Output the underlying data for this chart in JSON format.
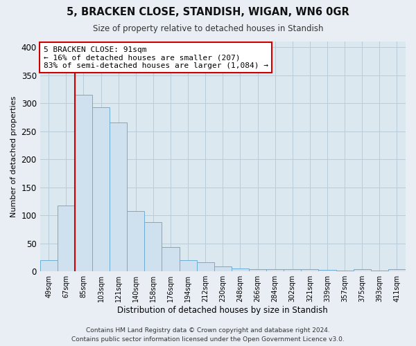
{
  "title": "5, BRACKEN CLOSE, STANDISH, WIGAN, WN6 0GR",
  "subtitle": "Size of property relative to detached houses in Standish",
  "xlabel": "Distribution of detached houses by size in Standish",
  "ylabel": "Number of detached properties",
  "bar_labels": [
    "49sqm",
    "67sqm",
    "85sqm",
    "103sqm",
    "121sqm",
    "140sqm",
    "158sqm",
    "176sqm",
    "194sqm",
    "212sqm",
    "230sqm",
    "248sqm",
    "266sqm",
    "284sqm",
    "302sqm",
    "321sqm",
    "339sqm",
    "357sqm",
    "375sqm",
    "393sqm",
    "411sqm"
  ],
  "bar_values": [
    20,
    118,
    315,
    293,
    265,
    108,
    88,
    43,
    20,
    16,
    9,
    5,
    4,
    4,
    4,
    4,
    3,
    1,
    4,
    1,
    4
  ],
  "bar_color": "#cfe0ee",
  "bar_edge_color": "#6aaed6",
  "vline_color": "#cc0000",
  "vline_x_idx": 2,
  "ylim": [
    0,
    410
  ],
  "annotation_text": "5 BRACKEN CLOSE: 91sqm\n← 16% of detached houses are smaller (207)\n83% of semi-detached houses are larger (1,084) →",
  "annotation_box_color": "#ffffff",
  "annotation_box_edge": "#cc0000",
  "footer_line1": "Contains HM Land Registry data © Crown copyright and database right 2024.",
  "footer_line2": "Contains public sector information licensed under the Open Government Licence v3.0.",
  "background_color": "#e8eef4",
  "plot_background_color": "#dce8f0",
  "grid_color": "#b8ccd8"
}
